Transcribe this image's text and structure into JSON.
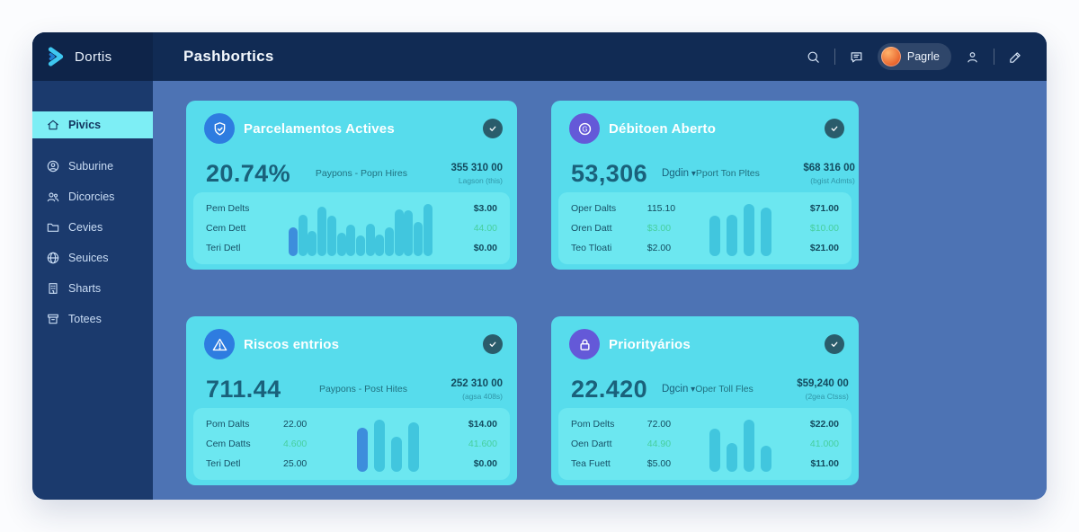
{
  "colors": {
    "topbar": "#112b54",
    "sidebar": "#1b3a6d",
    "logo_area": "#0e2449",
    "main_bg": "#4d73b4",
    "card_bg": "#57dcec",
    "panel_bg": "#6ce7f0",
    "active_item_bg": "#7deef5",
    "bar": "#41c6de",
    "bar_highlight": "#3d8edc",
    "green": "#47cf9e",
    "badge": "#2a5c6b",
    "icon_blue": "#2e7ce0",
    "icon_purple": "#6459d8",
    "logo_cyan": "#3ec7f0"
  },
  "brand": {
    "name": "Dortis"
  },
  "header": {
    "title": "Pashbortics",
    "user": {
      "name": "Pagrle"
    }
  },
  "sidebar": {
    "items": [
      {
        "label": "Pivics",
        "icon": "home-icon",
        "active": true
      },
      {
        "label": "Suburine",
        "icon": "user-circle-icon",
        "active": false
      },
      {
        "label": "Dicorcies",
        "icon": "users-icon",
        "active": false
      },
      {
        "label": "Cevies",
        "icon": "folder-icon",
        "active": false
      },
      {
        "label": "Seuices",
        "icon": "globe-icon",
        "active": false
      },
      {
        "label": "Sharts",
        "icon": "building-icon",
        "active": false
      },
      {
        "label": "Totees",
        "icon": "archive-icon",
        "active": false
      }
    ]
  },
  "cards": [
    {
      "title": "Parcelamentos Actives",
      "icon": "shield-icon",
      "icon_color": "#2e7ce0",
      "big_value": "20.74%",
      "dropdown": null,
      "stat_label": "Paypons - Popn Hires",
      "amount": "355 310 00",
      "amount_note": "Lagson (this)",
      "rows": [
        {
          "label": "Pem Delts",
          "mid": "",
          "amount": "$3.00",
          "green": false,
          "mid_green": false
        },
        {
          "label": "Cem Dett",
          "mid": "",
          "amount": "44.00",
          "green": true,
          "mid_green": false
        },
        {
          "label": "Teri Detl",
          "mid": "",
          "amount": "$0.00",
          "green": false,
          "mid_green": false
        }
      ],
      "chart": {
        "style": "wide",
        "highlight_first": true,
        "values": [
          0.55,
          0.8,
          0.48,
          0.95,
          0.78,
          0.45,
          0.6,
          0.4,
          0.62,
          0.42,
          0.55,
          0.9,
          0.88,
          0.66,
          1.0
        ]
      }
    },
    {
      "title": "Débitoen Aberto",
      "icon": "g-badge-icon",
      "icon_color": "#6459d8",
      "big_value": "53,306",
      "dropdown": "Dgdin",
      "stat_label": "Pport Ton Pltes",
      "amount": "$68 316 00",
      "amount_note": "(bgist Admts)",
      "rows": [
        {
          "label": "Oper Dalts",
          "mid": "115.10",
          "amount": "$71.00",
          "green": false,
          "mid_green": false
        },
        {
          "label": "Oren Datt",
          "mid": "$3.00",
          "amount": "$10.00",
          "green": true,
          "mid_green": true
        },
        {
          "label": "Teo Tloati",
          "mid": "$2.00",
          "amount": "$21.00",
          "green": false,
          "mid_green": false
        }
      ],
      "chart": {
        "style": "compact",
        "highlight_first": false,
        "values": [
          0.78,
          0.8,
          1.0,
          0.93
        ]
      }
    },
    {
      "title": "Riscos entrios",
      "icon": "alert-triangle-icon",
      "icon_color": "#2e7ce0",
      "big_value": "711.44",
      "dropdown": null,
      "stat_label": "Paypons - Post Hites",
      "amount": "252 310 00",
      "amount_note": "(agsa 408s)",
      "rows": [
        {
          "label": "Pom Dalts",
          "mid": "22.00",
          "amount": "$14.00",
          "green": false,
          "mid_green": false
        },
        {
          "label": "Cem Datts",
          "mid": "4.600",
          "amount": "41.600",
          "green": true,
          "mid_green": true
        },
        {
          "label": "Teri Detl",
          "mid": "25.00",
          "amount": "$0.00",
          "green": false,
          "mid_green": false
        }
      ],
      "chart": {
        "style": "compact",
        "highlight_first": true,
        "values": [
          0.85,
          1.0,
          0.68,
          0.95
        ]
      }
    },
    {
      "title": "Priorityários",
      "icon": "lock-icon",
      "icon_color": "#6459d8",
      "big_value": "22.420",
      "dropdown": "Dgcin",
      "stat_label": "Oper Toll Fles",
      "amount": "$59,240 00",
      "amount_note": "(2gea Ctsss)",
      "rows": [
        {
          "label": "Pom Delts",
          "mid": "72.00",
          "amount": "$22.00",
          "green": false,
          "mid_green": false
        },
        {
          "label": "Oen Dartt",
          "mid": "44.90",
          "amount": "41.000",
          "green": true,
          "mid_green": true
        },
        {
          "label": "Tea Fuett",
          "mid": "$5.00",
          "amount": "$11.00",
          "green": false,
          "mid_green": false
        }
      ],
      "chart": {
        "style": "compact",
        "highlight_first": false,
        "values": [
          0.82,
          0.55,
          1.0,
          0.5
        ]
      }
    }
  ]
}
